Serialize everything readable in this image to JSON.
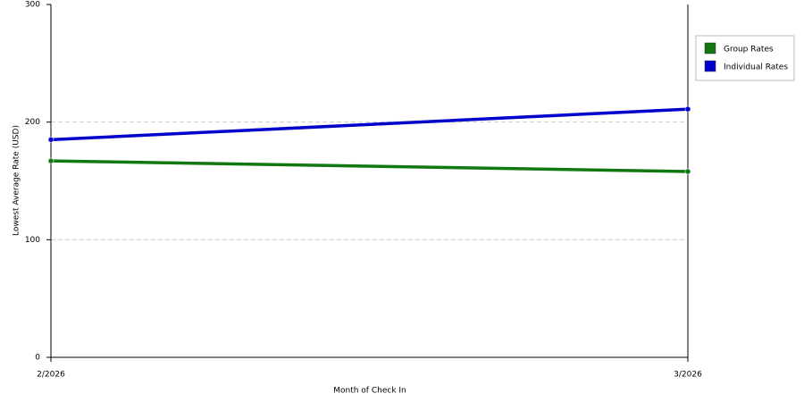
{
  "chart_data": {
    "type": "line",
    "x_label": "Month of Check In",
    "y_label": "Lowest Average Rate (USD)",
    "categories": [
      "2/2026",
      "3/2026"
    ],
    "series": [
      {
        "name": "Group Rates",
        "color": "#117711",
        "values": [
          167,
          158
        ]
      },
      {
        "name": "Individual Rates",
        "color": "#0000cc",
        "values": [
          185,
          211
        ]
      }
    ],
    "ylim": [
      0,
      300
    ],
    "yticks": [
      0,
      100,
      200,
      300
    ],
    "grid": true,
    "legend": "right"
  }
}
